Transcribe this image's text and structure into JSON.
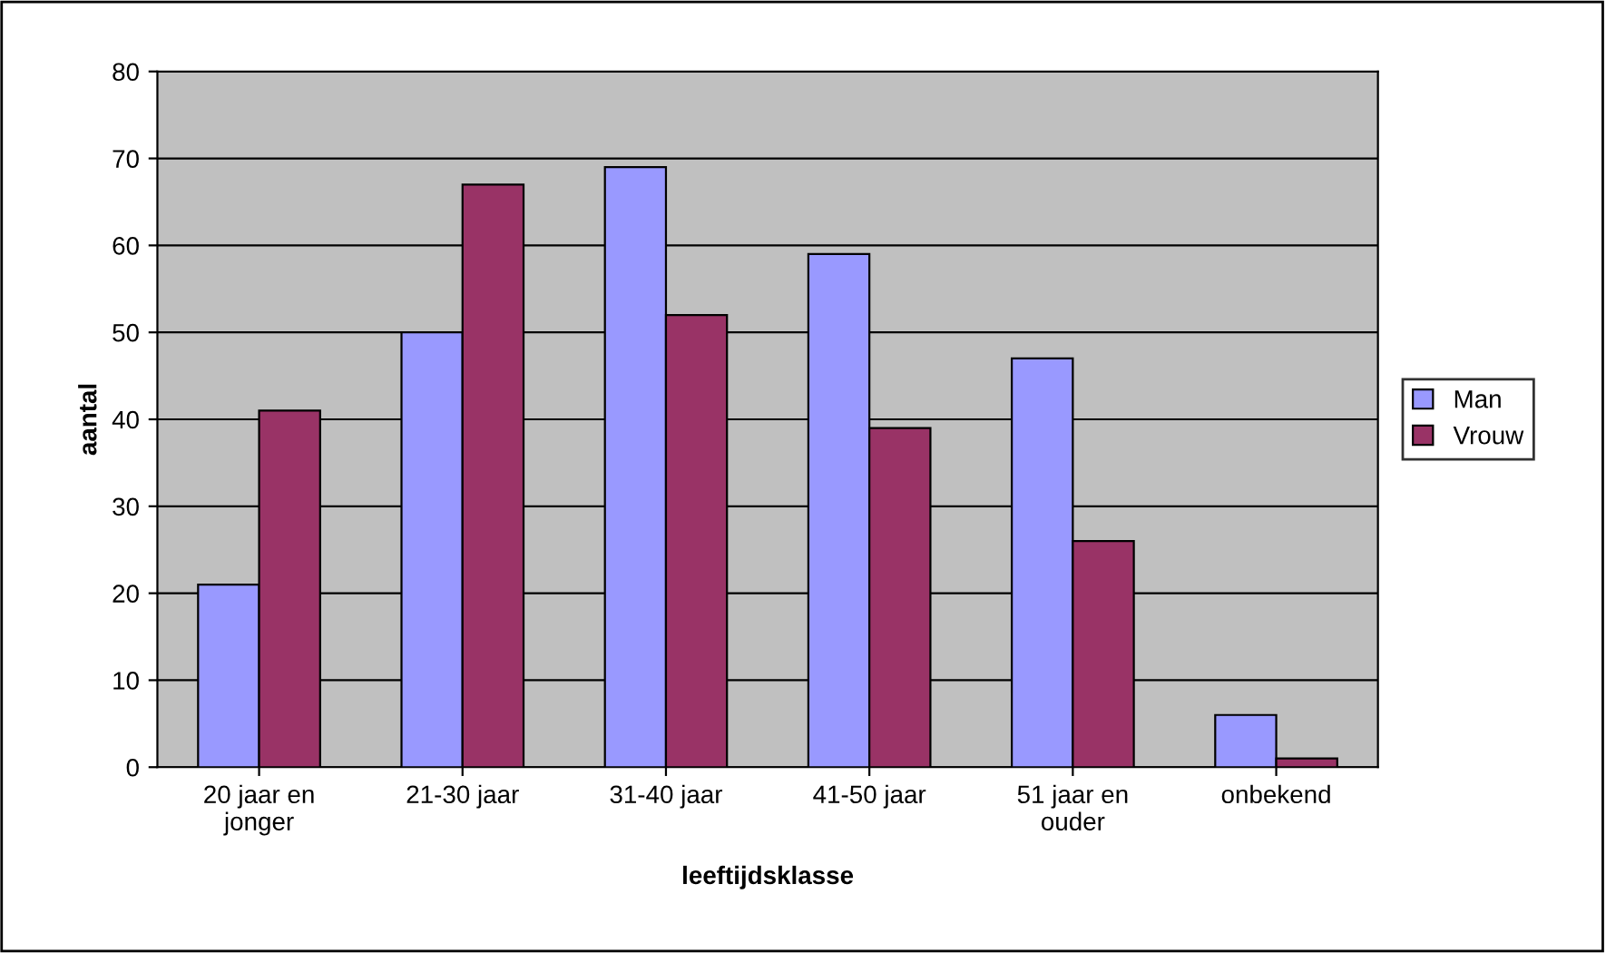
{
  "chart_data": {
    "type": "bar",
    "xlabel": "leeftijdsklasse",
    "ylabel": "aantal",
    "categories": [
      "20 jaar en\njonger",
      "21-30 jaar",
      "31-40 jaar",
      "41-50 jaar",
      "51 jaar en\nouder",
      "onbekend"
    ],
    "series": [
      {
        "name": "Man",
        "color": "#9999ff",
        "values": [
          21,
          50,
          69,
          59,
          47,
          6
        ]
      },
      {
        "name": "Vrouw",
        "color": "#993366",
        "values": [
          41,
          67,
          52,
          39,
          26,
          1
        ]
      }
    ],
    "ylim": [
      0,
      80
    ],
    "yticks": [
      0,
      10,
      20,
      30,
      40,
      50,
      60,
      70,
      80
    ],
    "grid": "y",
    "legend": "right"
  }
}
